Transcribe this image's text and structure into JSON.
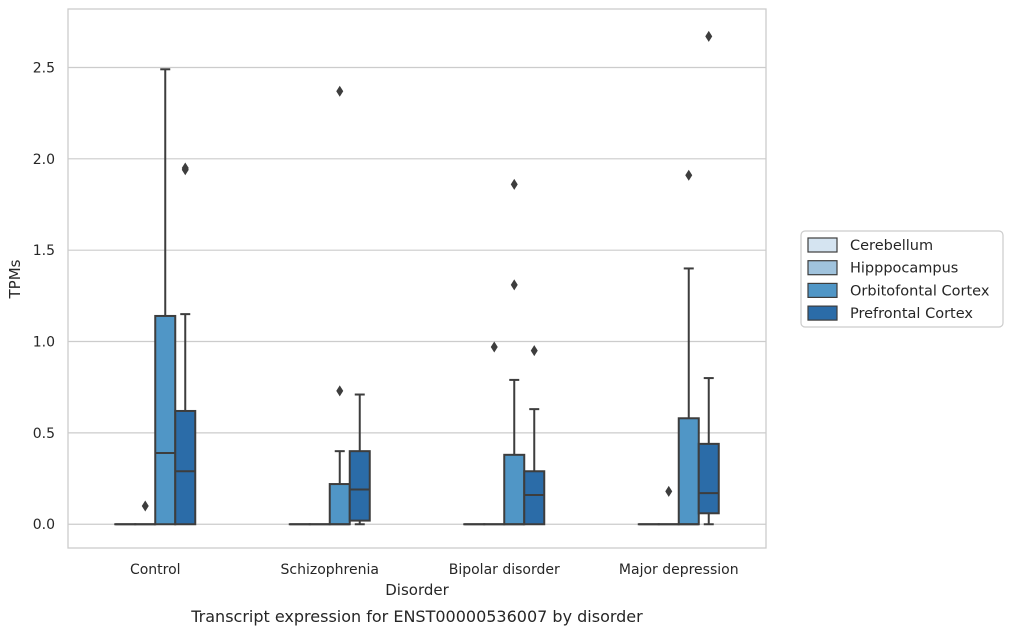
{
  "chart_data": {
    "type": "box",
    "caption": "Transcript expression for ENST00000536007 by disorder",
    "xlabel": "Disorder",
    "ylabel": "TPMs",
    "ylim": [
      -0.13,
      2.82
    ],
    "yticks": [
      0.0,
      0.5,
      1.0,
      1.5,
      2.0,
      2.5
    ],
    "ytick_labels": [
      "0.0",
      "0.5",
      "1.0",
      "1.5",
      "2.0",
      "2.5"
    ],
    "grid": true,
    "legend_position": "right",
    "categories": [
      "Control",
      "Schizophrenia",
      "Bipolar disorder",
      "Major depression"
    ],
    "series": [
      {
        "name": "Cerebellum",
        "color": "#d5e4f1",
        "boxes": [
          {
            "category": "Control",
            "min": 0,
            "q1": 0,
            "median": 0,
            "q3": 0,
            "max": 0,
            "outliers": []
          },
          {
            "category": "Schizophrenia",
            "min": 0,
            "q1": 0,
            "median": 0,
            "q3": 0,
            "max": 0,
            "outliers": []
          },
          {
            "category": "Bipolar disorder",
            "min": 0,
            "q1": 0,
            "median": 0,
            "q3": 0,
            "max": 0,
            "outliers": []
          },
          {
            "category": "Major depression",
            "min": 0,
            "q1": 0,
            "median": 0,
            "q3": 0,
            "max": 0,
            "outliers": []
          }
        ]
      },
      {
        "name": "Hipppocampus",
        "color": "#a0c3dd",
        "boxes": [
          {
            "category": "Control",
            "min": 0,
            "q1": 0,
            "median": 0,
            "q3": 0,
            "max": 0,
            "outliers": [
              0.1
            ]
          },
          {
            "category": "Schizophrenia",
            "min": 0,
            "q1": 0,
            "median": 0,
            "q3": 0,
            "max": 0,
            "outliers": []
          },
          {
            "category": "Bipolar disorder",
            "min": 0,
            "q1": 0,
            "median": 0,
            "q3": 0,
            "max": 0,
            "outliers": [
              0.97
            ]
          },
          {
            "category": "Major depression",
            "min": 0,
            "q1": 0,
            "median": 0,
            "q3": 0,
            "max": 0,
            "outliers": [
              0.18
            ]
          }
        ]
      },
      {
        "name": "Orbitofontal Cortex",
        "color": "#5096c6",
        "boxes": [
          {
            "category": "Control",
            "min": 0,
            "q1": 0,
            "median": 0.39,
            "q3": 1.14,
            "max": 2.49,
            "outliers": []
          },
          {
            "category": "Schizophrenia",
            "min": 0,
            "q1": 0,
            "median": 0,
            "q3": 0.22,
            "max": 0.4,
            "outliers": [
              0.73,
              2.37
            ]
          },
          {
            "category": "Bipolar disorder",
            "min": 0,
            "q1": 0,
            "median": 0,
            "q3": 0.38,
            "max": 0.79,
            "outliers": [
              1.31,
              1.86
            ]
          },
          {
            "category": "Major depression",
            "min": 0,
            "q1": 0,
            "median": 0,
            "q3": 0.58,
            "max": 1.4,
            "outliers": [
              1.91
            ]
          }
        ]
      },
      {
        "name": "Prefrontal Cortex",
        "color": "#2b6ca8",
        "boxes": [
          {
            "category": "Control",
            "min": 0,
            "q1": 0,
            "median": 0.29,
            "q3": 0.62,
            "max": 1.15,
            "outliers": [
              1.94,
              1.95
            ]
          },
          {
            "category": "Schizophrenia",
            "min": 0,
            "q1": 0.02,
            "median": 0.19,
            "q3": 0.4,
            "max": 0.71,
            "outliers": []
          },
          {
            "category": "Bipolar disorder",
            "min": 0,
            "q1": 0,
            "median": 0.16,
            "q3": 0.29,
            "max": 0.63,
            "outliers": [
              0.95
            ]
          },
          {
            "category": "Major depression",
            "min": 0,
            "q1": 0.06,
            "median": 0.17,
            "q3": 0.44,
            "max": 0.8,
            "outliers": [
              2.67
            ]
          }
        ]
      }
    ]
  }
}
